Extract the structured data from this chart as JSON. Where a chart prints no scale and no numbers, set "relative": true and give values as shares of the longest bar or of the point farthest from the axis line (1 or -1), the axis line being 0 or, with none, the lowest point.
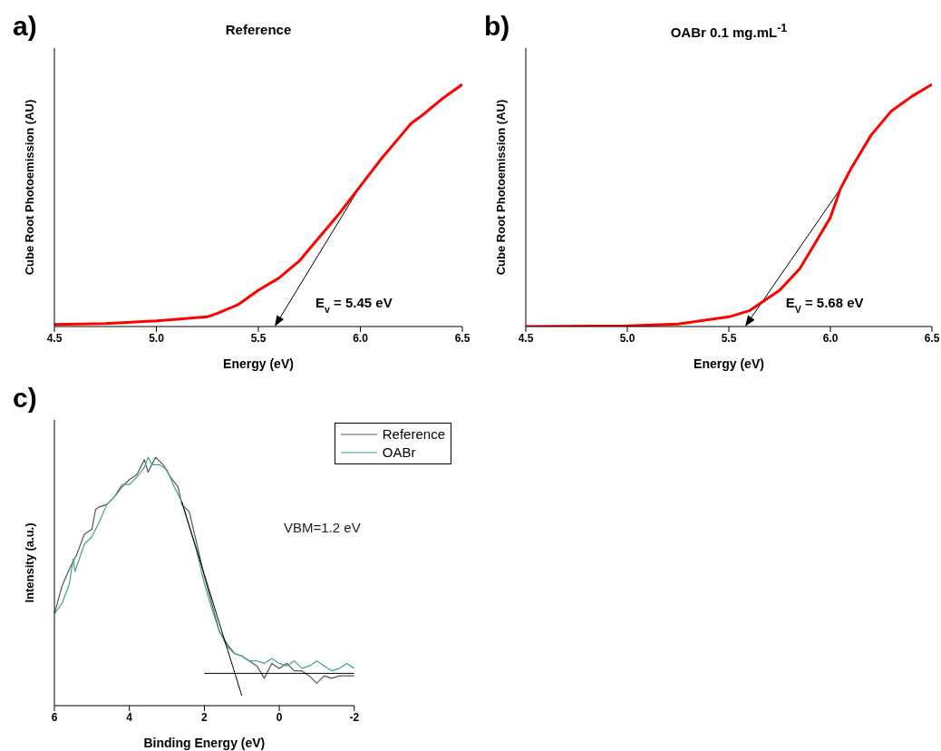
{
  "chart_data": [
    {
      "type": "line",
      "title": "Reference",
      "xlabel": "Energy (eV)",
      "ylabel": "Cube Root Photoemission (AU)",
      "relative": true,
      "marker": "none",
      "xlim": [
        4.5,
        6.5
      ],
      "xticks": [
        {
          "value": 4.5,
          "label": "4.5"
        },
        {
          "value": 5.0,
          "label": "5.0"
        },
        {
          "value": 5.5,
          "label": "5.5"
        },
        {
          "value": 6.0,
          "label": "6.0"
        },
        {
          "value": 6.5,
          "label": "6.5"
        }
      ],
      "series": [
        {
          "color": "#ff0000",
          "x": [
            4.5,
            4.75,
            5.0,
            5.1,
            5.25,
            5.3,
            5.4,
            5.5,
            5.6,
            5.7,
            5.75,
            5.8,
            5.9,
            6.0,
            6.1,
            6.2,
            6.25,
            6.3,
            6.4,
            6.5
          ],
          "values": [
            0.008,
            0.012,
            0.023,
            0.03,
            0.04,
            0.055,
            0.09,
            0.15,
            0.2,
            0.27,
            0.32,
            0.37,
            0.47,
            0.58,
            0.69,
            0.79,
            0.84,
            0.87,
            0.94,
            1
          ]
        }
      ],
      "annotations": [
        "a)",
        "E$_{v}$ = 5.45 eV"
      ]
    },
    {
      "type": "line",
      "title": "OABr 0.1 mg.mL$^{-1}$",
      "xlabel": "Energy (eV)",
      "ylabel": "Cube Root Photoemission (AU)",
      "relative": true,
      "marker": "none",
      "xlim": [
        4.5,
        6.5
      ],
      "xticks": [
        {
          "value": 4.5,
          "label": "4.5"
        },
        {
          "value": 5.0,
          "label": "5.0"
        },
        {
          "value": 5.5,
          "label": "5.5"
        },
        {
          "value": 6.0,
          "label": "6.0"
        },
        {
          "value": 6.5,
          "label": "6.5"
        }
      ],
      "series": [
        {
          "color": "#ff0000",
          "x": [
            4.5,
            5.0,
            5.25,
            5.5,
            5.6,
            5.75,
            5.85,
            6.0,
            6.05,
            6.1,
            6.2,
            6.3,
            6.4,
            6.5
          ],
          "values": [
            0,
            0.003,
            0.01,
            0.04,
            0.065,
            0.15,
            0.24,
            0.45,
            0.57,
            0.65,
            0.79,
            0.89,
            0.95,
            1
          ]
        }
      ],
      "annotations": [
        "b)",
        "E$_{V}$ = 5.68 eV"
      ]
    },
    {
      "type": "line",
      "xlabel": "Binding Energy (eV)",
      "ylabel": "Intensity (a.u.)",
      "relative": true,
      "marker": "none",
      "legend": "top right",
      "xlim": [
        6,
        -2
      ],
      "xticks": [
        6,
        4,
        2,
        0,
        -2
      ],
      "series": [
        {
          "name": "Reference",
          "color": "#555555",
          "x": [
            6.0,
            5.8,
            5.6,
            5.4,
            5.2,
            5.0,
            4.9,
            4.8,
            4.6,
            4.4,
            4.2,
            4.0,
            3.8,
            3.6,
            3.5,
            3.3,
            3.1,
            2.9,
            2.7,
            2.6,
            2.4,
            2.2,
            2.0,
            1.8,
            1.6,
            1.4,
            1.2,
            1.0,
            0.8,
            0.6,
            0.4,
            0.2,
            0.0,
            -0.2,
            -0.4,
            -0.6,
            -0.8,
            -1.0,
            -1.2,
            -1.4,
            -1.6,
            -1.8,
            -2.0
          ],
          "values": [
            0.37,
            0.48,
            0.55,
            0.61,
            0.69,
            0.71,
            0.79,
            0.8,
            0.81,
            0.84,
            0.88,
            0.91,
            0.93,
            0.99,
            0.94,
            1.0,
            0.97,
            0.92,
            0.88,
            0.81,
            0.78,
            0.65,
            0.52,
            0.41,
            0.3,
            0.25,
            0.21,
            0.2,
            0.18,
            0.16,
            0.11,
            0.17,
            0.15,
            0.17,
            0.14,
            0.14,
            0.12,
            0.09,
            0.12,
            0.11,
            0.12,
            0.12,
            0.12
          ]
        },
        {
          "name": "OABr",
          "color": "#3daa6e",
          "x": [
            6.0,
            5.8,
            5.6,
            5.5,
            5.45,
            5.2,
            5.0,
            4.8,
            4.6,
            4.4,
            4.2,
            4.0,
            3.8,
            3.6,
            3.5,
            3.4,
            3.2,
            3.0,
            2.8,
            2.6,
            2.4,
            2.2,
            2.0,
            1.8,
            1.6,
            1.4,
            1.2,
            1.0,
            0.8,
            0.6,
            0.4,
            0.2,
            0.0,
            -0.2,
            -0.4,
            -0.6,
            -0.8,
            -1.0,
            -1.2,
            -1.4,
            -1.6,
            -1.8,
            -2.0
          ],
          "values": [
            0.37,
            0.41,
            0.49,
            0.59,
            0.54,
            0.65,
            0.68,
            0.74,
            0.81,
            0.84,
            0.89,
            0.89,
            0.92,
            0.96,
            1.0,
            0.97,
            0.97,
            0.95,
            0.88,
            0.82,
            0.72,
            0.62,
            0.49,
            0.39,
            0.3,
            0.24,
            0.21,
            0.2,
            0.18,
            0.18,
            0.17,
            0.19,
            0.17,
            0.16,
            0.18,
            0.15,
            0.16,
            0.18,
            0.16,
            0.14,
            0.15,
            0.17,
            0.15
          ]
        },
        {
          "color": "#000000",
          "x": [
            2.6,
            1.0
          ],
          "values": [
            0.82,
            0.04
          ]
        },
        {
          "color": "#000000",
          "x": [
            2.0,
            -2.0
          ],
          "values": [
            0.13,
            0.13
          ]
        }
      ],
      "annotations": [
        "c)",
        "VBM=1.2 eV"
      ]
    }
  ]
}
